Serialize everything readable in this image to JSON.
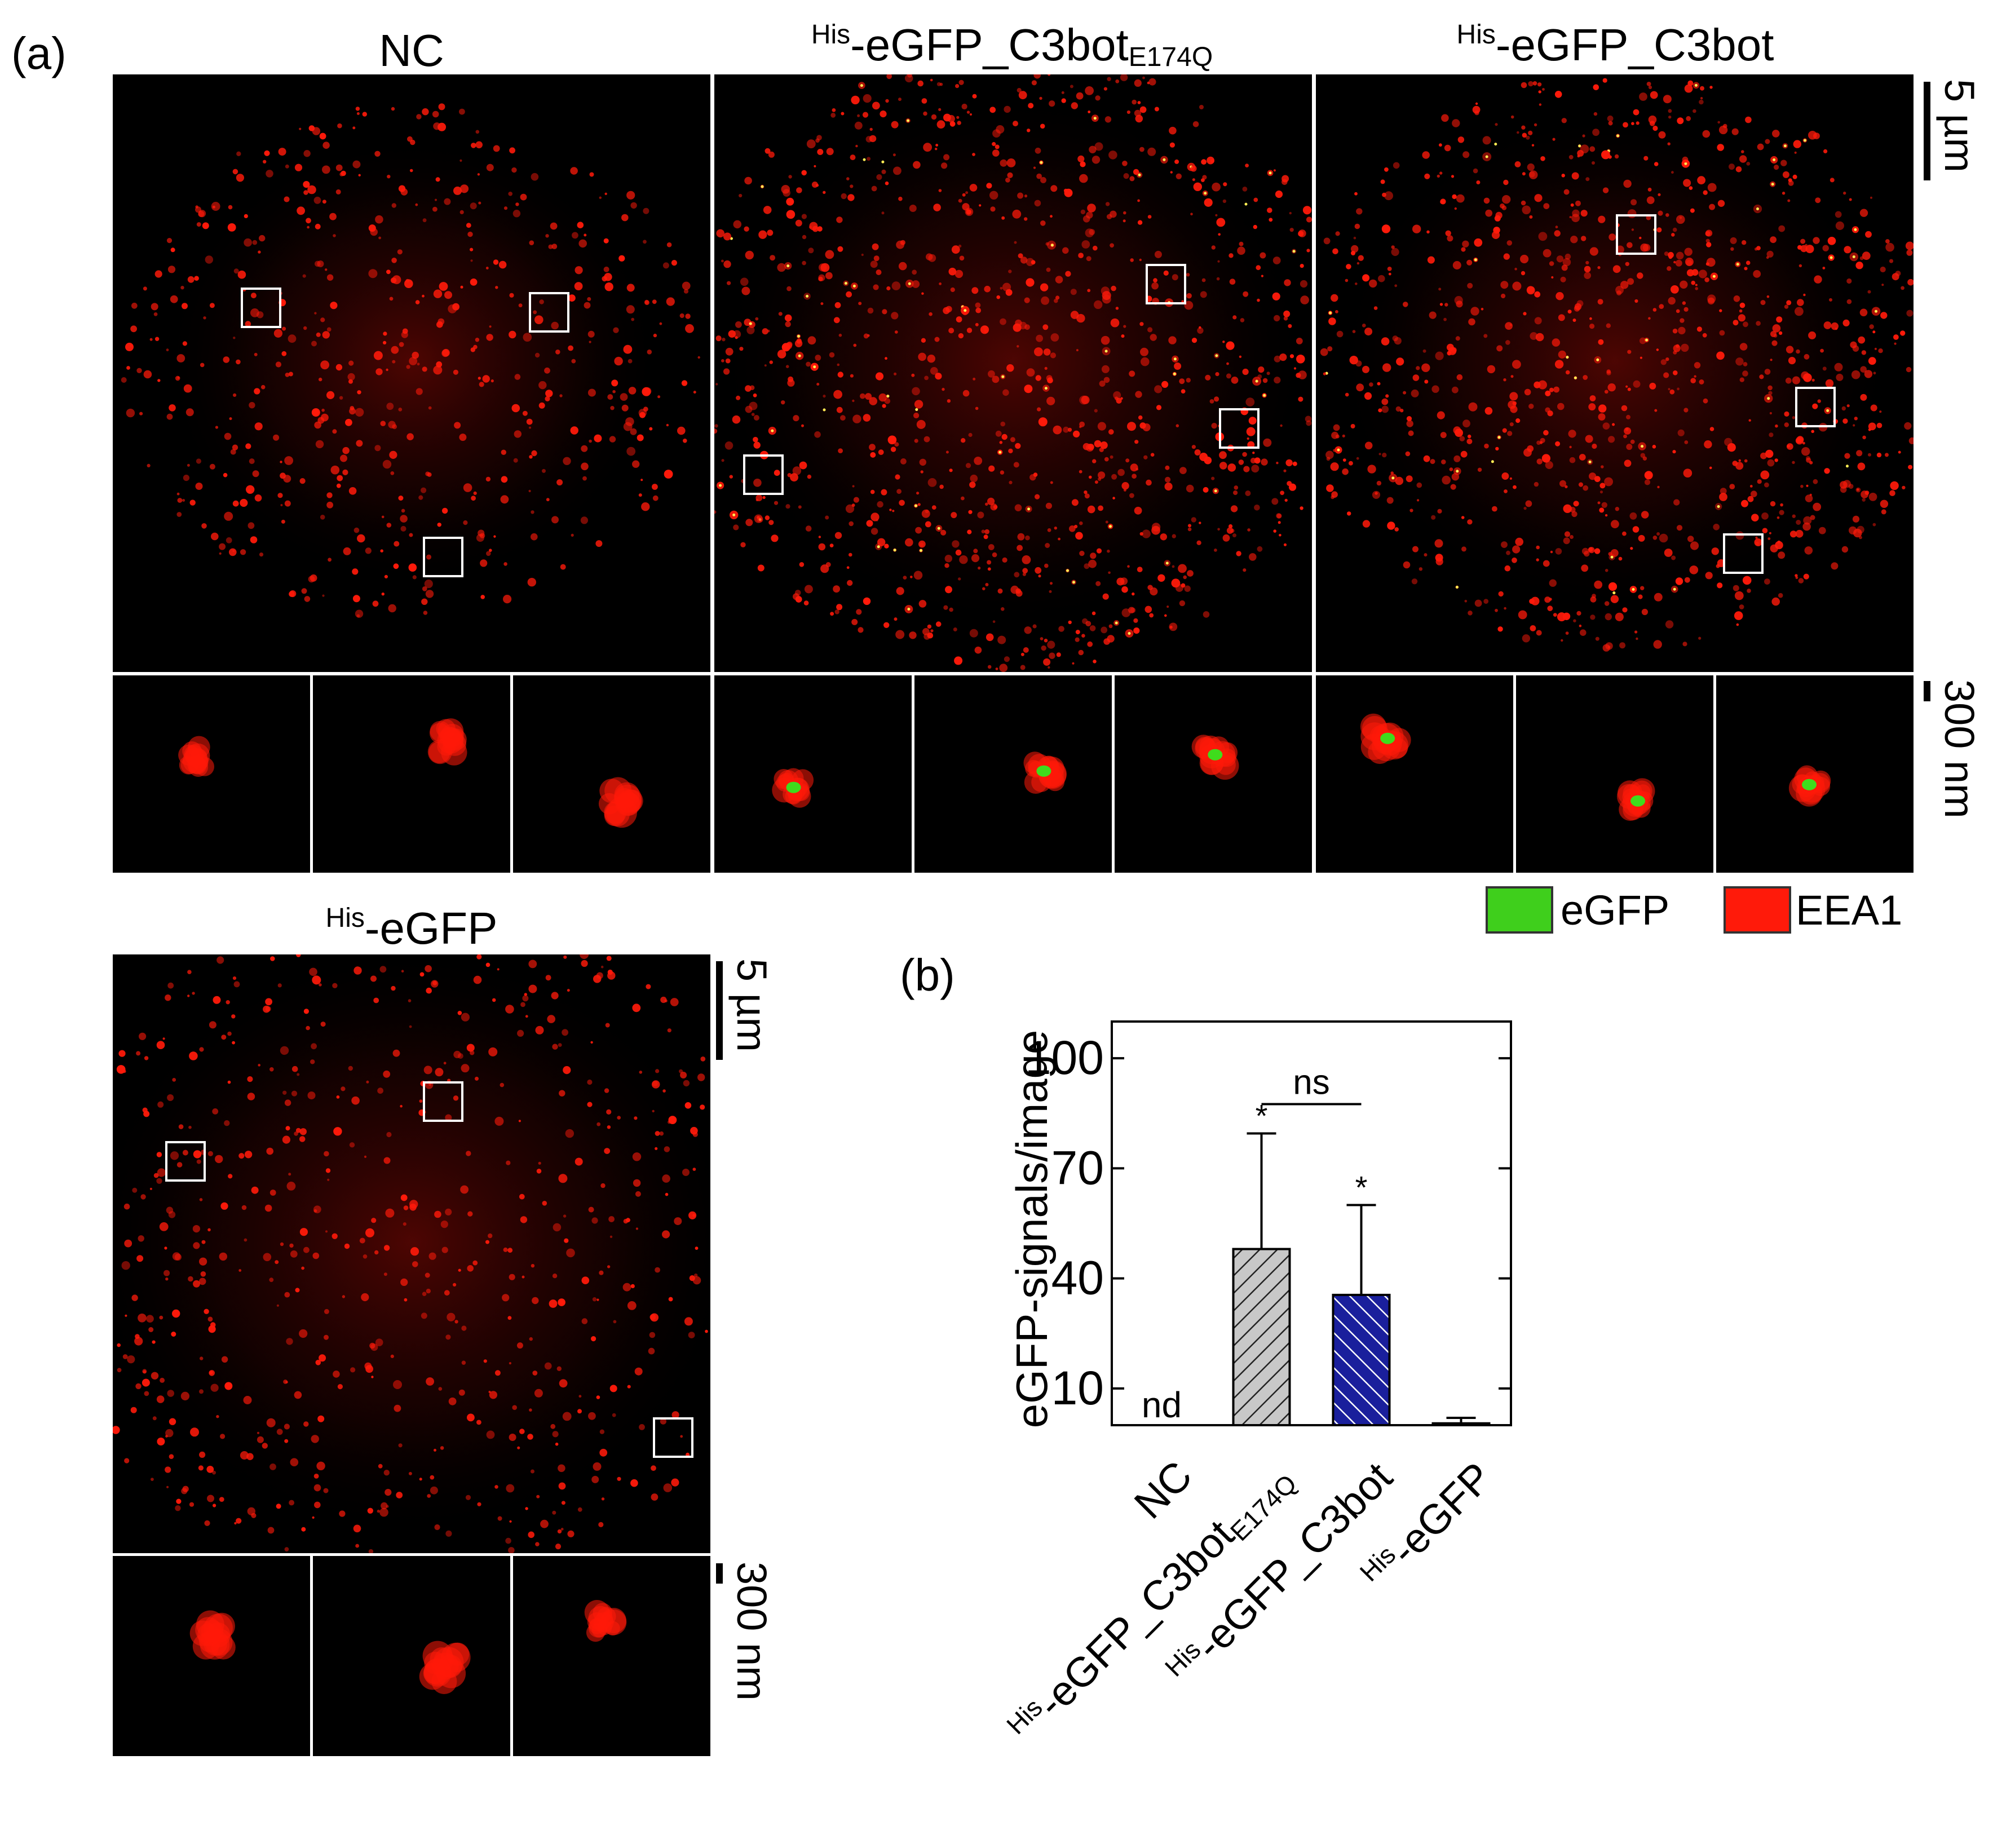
{
  "panel_a_label": "(a)",
  "panel_b_label": "(b)",
  "panels": {
    "nc": {
      "title": "NC"
    },
    "c3bot_mut": {
      "title_prefix": "His",
      "title_main": "-eGFP_C3bot",
      "title_sub": "E174Q"
    },
    "c3bot": {
      "title_prefix": "His",
      "title_main": "-eGFP_C3bot"
    },
    "egfp": {
      "title_prefix": "His",
      "title_main": "-eGFP"
    }
  },
  "scalebars": {
    "large": "5 µm",
    "small": "300 nm"
  },
  "legend": [
    {
      "label": "eGFP",
      "color": "#3fcf1c"
    },
    {
      "label": "EEA1",
      "color": "#ff1a0a"
    }
  ],
  "colors": {
    "eea1": "#ff1a0a",
    "egfp": "#3fdc1c",
    "hatch_grey": "#c8c8c8",
    "hatch_blue": "#1a1f9c"
  },
  "chart_data": {
    "type": "bar",
    "ylabel": "eGFP-signals/image",
    "yticks": [
      10,
      40,
      70,
      100
    ],
    "ylim": [
      0,
      110
    ],
    "categories": [
      {
        "prefix": "",
        "main": "NC",
        "sub": ""
      },
      {
        "prefix": "His",
        "main": "-eGFP_C3bot",
        "sub": "E174Q"
      },
      {
        "prefix": "His",
        "main": "-eGFP_C3bot",
        "sub": ""
      },
      {
        "prefix": "His",
        "main": "-eGFP",
        "sub": ""
      }
    ],
    "values": [
      0,
      48,
      35.5,
      0.5
    ],
    "errors": [
      0,
      31.5,
      24.5,
      1.5
    ],
    "bar_labels": [
      "nd",
      "*",
      "*",
      ""
    ],
    "significance": {
      "label": "ns",
      "between": [
        1,
        2
      ]
    }
  }
}
